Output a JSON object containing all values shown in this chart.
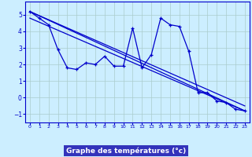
{
  "x_data": [
    0,
    1,
    2,
    3,
    4,
    5,
    6,
    7,
    8,
    9,
    10,
    11,
    12,
    13,
    14,
    15,
    16,
    17,
    18,
    19,
    20,
    21,
    22,
    23
  ],
  "temp_line": [
    5.2,
    4.8,
    4.4,
    2.9,
    1.8,
    1.7,
    2.1,
    2.0,
    2.5,
    1.9,
    1.9,
    4.2,
    1.8,
    2.6,
    4.8,
    4.4,
    4.3,
    2.8,
    0.3,
    0.3,
    -0.2,
    -0.3,
    -0.7,
    -0.8
  ],
  "trend1_x": [
    0,
    23
  ],
  "trend1_y": [
    5.2,
    -0.8
  ],
  "trend2_x": [
    0,
    23
  ],
  "trend2_y": [
    5.2,
    -0.5
  ],
  "trend3_x": [
    0,
    23
  ],
  "trend3_y": [
    4.8,
    -0.8
  ],
  "line_color": "#0000cc",
  "bg_color": "#cceeff",
  "grid_color": "#aacccc",
  "xlabel": "Graphe des températures (°c)",
  "xlabel_bg": "#3333bb",
  "xlabel_color": "#ffffff",
  "ylim": [
    -1.5,
    5.8
  ],
  "xlim": [
    -0.5,
    23.5
  ],
  "yticks": [
    -1,
    0,
    1,
    2,
    3,
    4,
    5
  ],
  "xticks": [
    0,
    1,
    2,
    3,
    4,
    5,
    6,
    7,
    8,
    9,
    10,
    11,
    12,
    13,
    14,
    15,
    16,
    17,
    18,
    19,
    20,
    21,
    22,
    23
  ]
}
